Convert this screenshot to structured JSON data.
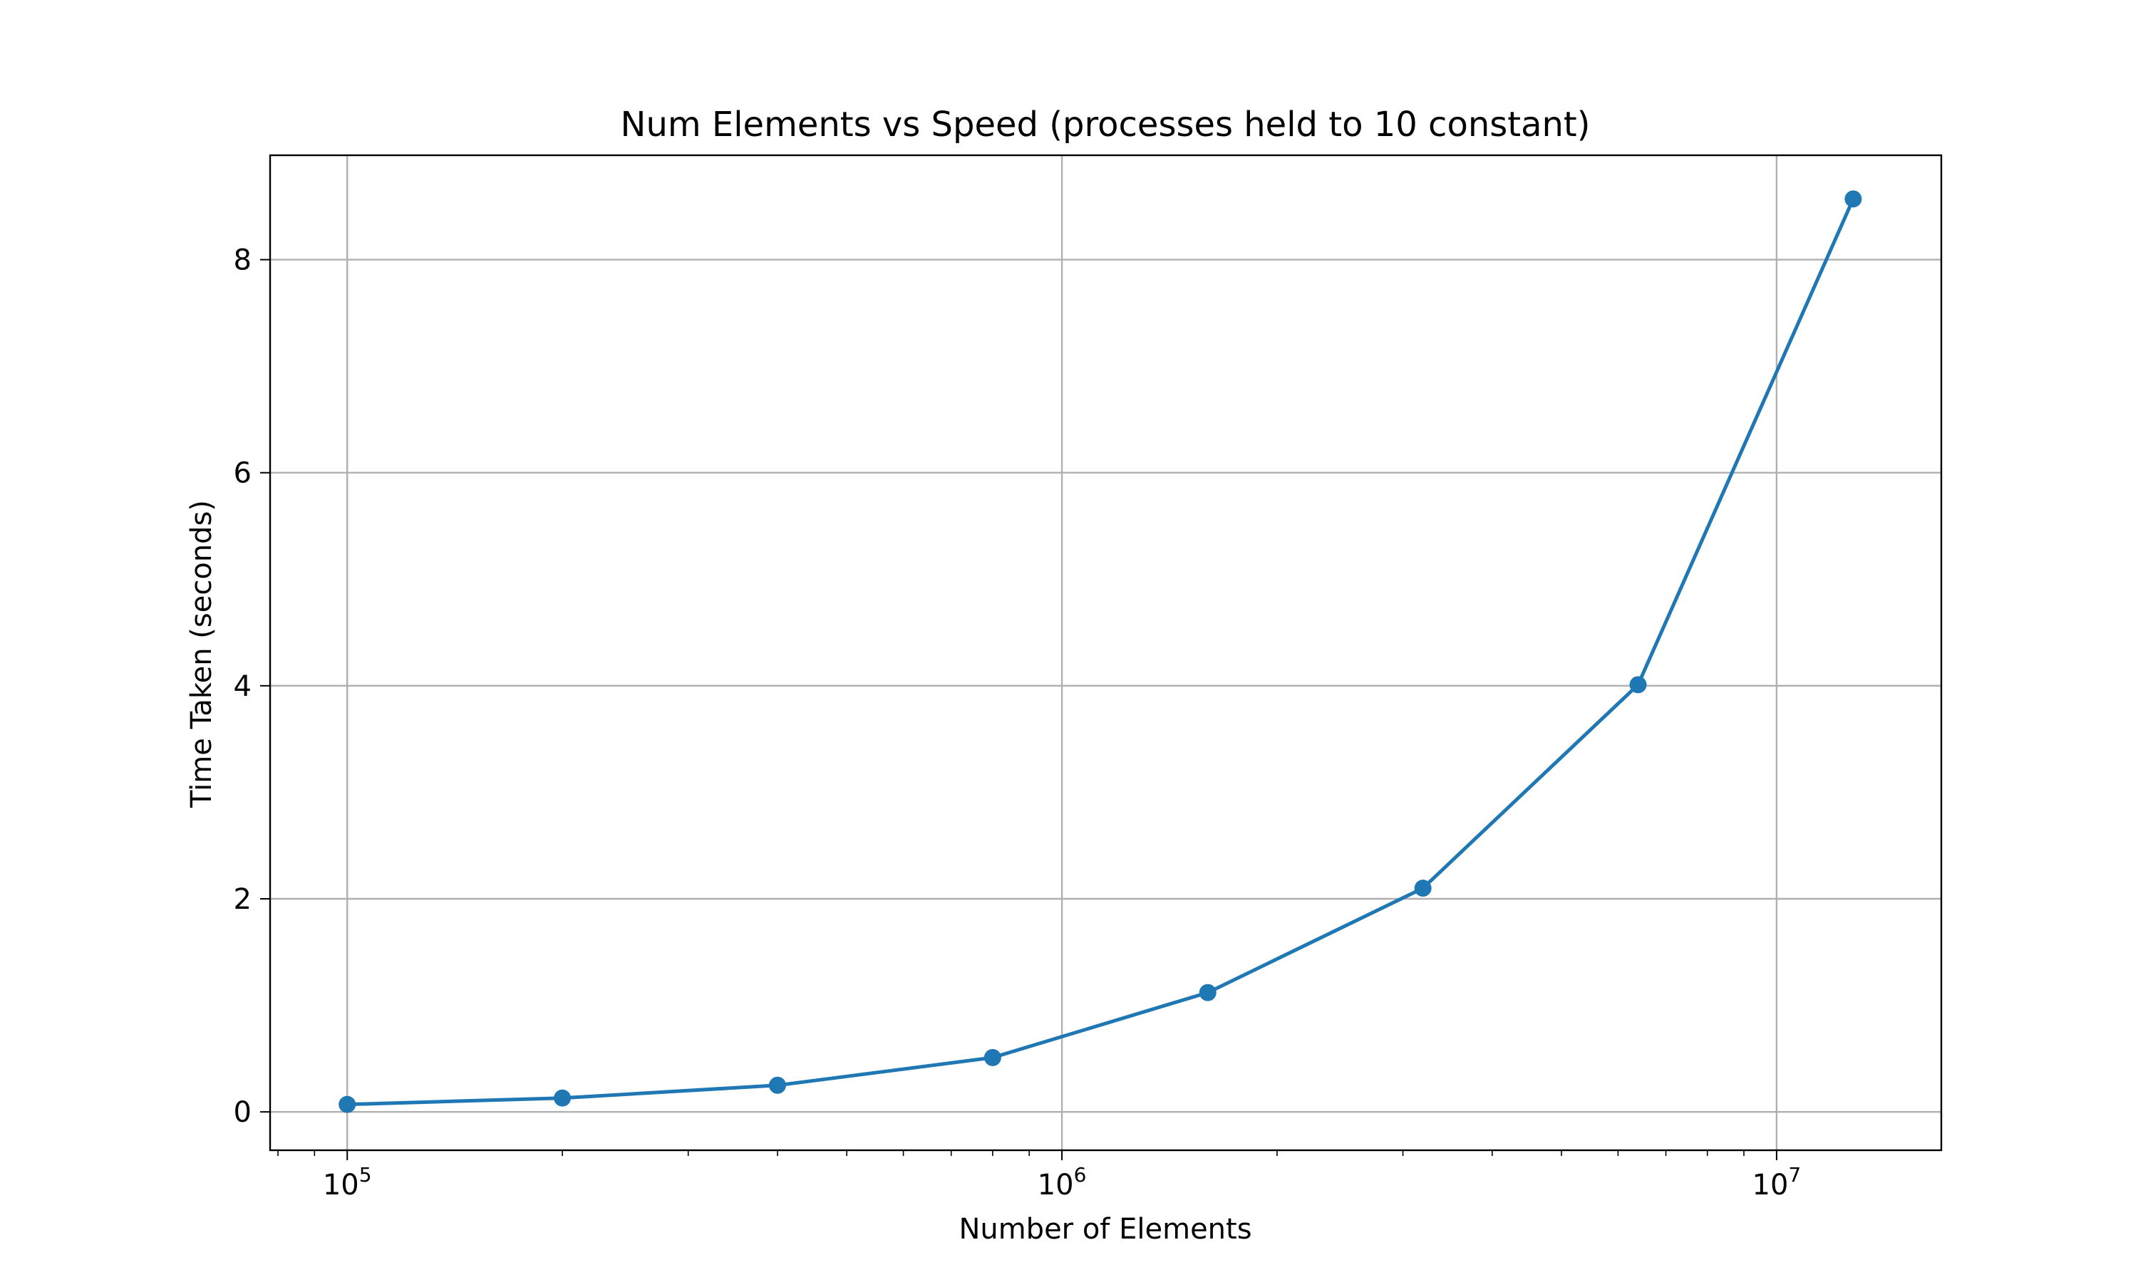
{
  "chart_data": {
    "type": "line",
    "title": "Num Elements vs Speed (processes held to 10 constant)",
    "xlabel": "Number of Elements",
    "ylabel": "Time Taken (seconds)",
    "xscale": "log",
    "xlim": [
      78000,
      17000000
    ],
    "ylim": [
      -0.36,
      8.98
    ],
    "grid": true,
    "legend": "none",
    "x": [
      100000,
      200000,
      400000,
      800000,
      1600000,
      3200000,
      6400000,
      12800000
    ],
    "series": [
      {
        "color": "#1f77b4",
        "marker": "circle",
        "values": [
          0.07,
          0.13,
          0.25,
          0.51,
          1.12,
          2.1,
          4.01,
          8.57
        ]
      }
    ],
    "xticks": [
      {
        "value": 100000,
        "base": "10",
        "exp": "5"
      },
      {
        "value": 1000000,
        "base": "10",
        "exp": "6"
      },
      {
        "value": 10000000,
        "base": "10",
        "exp": "7"
      }
    ],
    "yticks": [
      {
        "value": 0,
        "label": "0"
      },
      {
        "value": 2,
        "label": "2"
      },
      {
        "value": 4,
        "label": "4"
      },
      {
        "value": 6,
        "label": "6"
      },
      {
        "value": 8,
        "label": "8"
      }
    ],
    "colors": {
      "line": "#1f77b4",
      "grid": "#b0b0b0",
      "axes": "#000000"
    }
  }
}
